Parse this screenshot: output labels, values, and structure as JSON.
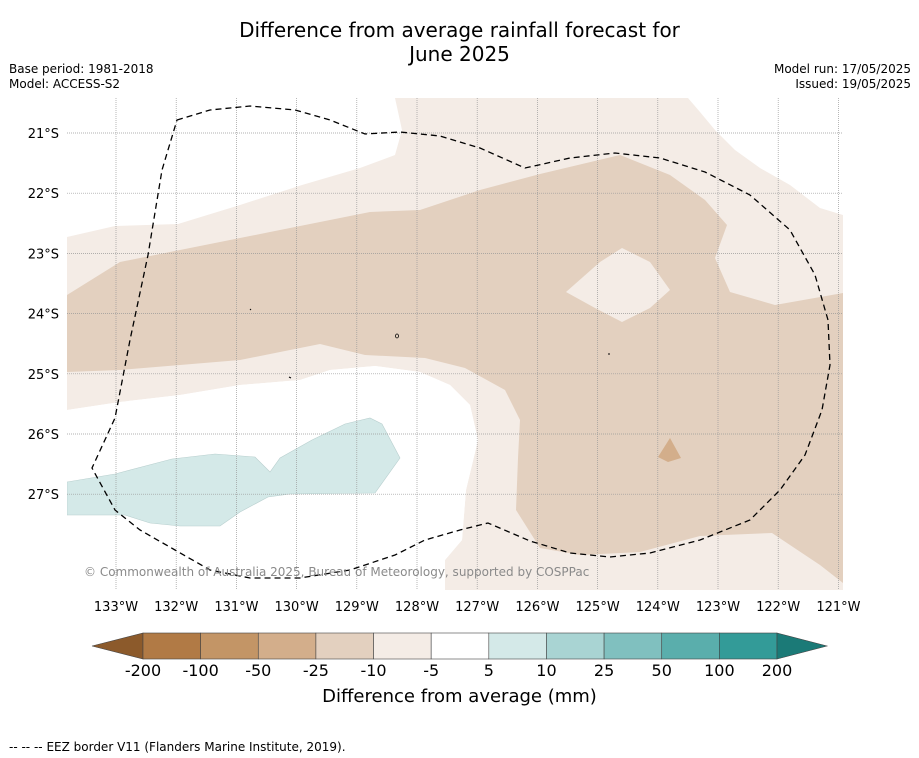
{
  "header": {
    "title_line1": "Difference from average rainfall forecast for",
    "title_line2": "June 2025",
    "base_period": "Base period: 1981-2018",
    "model": "Model: ACCESS-S2",
    "model_run": "Model run: 17/05/2025",
    "issued": "Issued: 19/05/2025"
  },
  "map": {
    "lat_labels": [
      "21°S",
      "22°S",
      "23°S",
      "24°S",
      "25°S",
      "26°S",
      "27°S"
    ],
    "lon_labels": [
      "133°W",
      "132°W",
      "131°W",
      "130°W",
      "129°W",
      "128°W",
      "127°W",
      "126°W",
      "125°W",
      "124°W",
      "123°W",
      "122°W",
      "121°W"
    ],
    "copyright": "© Commonwealth of Australia 2025, Bureau of Meteorology, supported by COSPPac",
    "eez_style": "dashed black line",
    "colors": {
      "dry_-10_-5": "#f4ece6",
      "dry_-25_-10": "#e3d0bf",
      "dry_-50_-25": "#d3ae8b",
      "wet_5_10": "#d4e9e8"
    }
  },
  "colorbar": {
    "ticks": [
      "-200",
      "-100",
      "-50",
      "-25",
      "-10",
      "-5",
      "5",
      "10",
      "25",
      "50",
      "100",
      "200"
    ],
    "colors": [
      "#8c5a2b",
      "#b17a45",
      "#c39566",
      "#d3ae8b",
      "#e3d0bf",
      "#f4ece6",
      "#ffffff",
      "#d4e9e8",
      "#a9d4d3",
      "#80c0bf",
      "#5aaeac",
      "#339b98",
      "#1b7a77"
    ],
    "title": "Difference from average (mm)"
  },
  "footer": {
    "legend_dashes": "--  --  --",
    "legend_text": "EEZ border V11 (Flanders Marine Institute, 2019)."
  }
}
